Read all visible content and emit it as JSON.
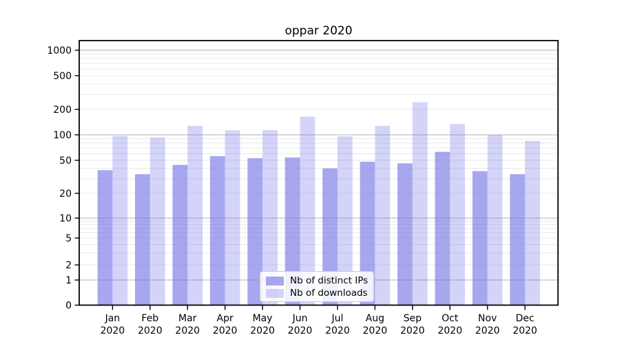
{
  "chart_data": {
    "type": "bar",
    "title": "oppar 2020",
    "categories": [
      "Jan 2020",
      "Feb 2020",
      "Mar 2020",
      "Apr 2020",
      "May 2020",
      "Jun 2020",
      "Jul 2020",
      "Aug 2020",
      "Sep 2020",
      "Oct 2020",
      "Nov 2020",
      "Dec 2020"
    ],
    "series": [
      {
        "name": "Nb of distinct IPs",
        "values": [
          38,
          34,
          44,
          56,
          53,
          54,
          40,
          48,
          46,
          63,
          37,
          34
        ],
        "color": "#7a7ae8",
        "fill_opacity": 0.66
      },
      {
        "name": "Nb of downloads",
        "values": [
          97,
          93,
          128,
          113,
          114,
          164,
          96,
          128,
          243,
          134,
          100,
          85
        ],
        "color": "#7a7ae8",
        "fill_opacity": 0.32
      }
    ],
    "xlabel": "",
    "ylabel": "",
    "yscale": "symlog",
    "yticks": [
      0,
      1,
      2,
      5,
      10,
      20,
      50,
      100,
      200,
      500,
      1000
    ],
    "ylim": [
      0,
      1340
    ],
    "grid": {
      "major_values": [
        1,
        10,
        100,
        1000
      ],
      "major_color": "#b0b0b0",
      "minor_color": "#e8e8e8"
    },
    "legend_position": "lower-center",
    "axis_color": "#000000"
  }
}
